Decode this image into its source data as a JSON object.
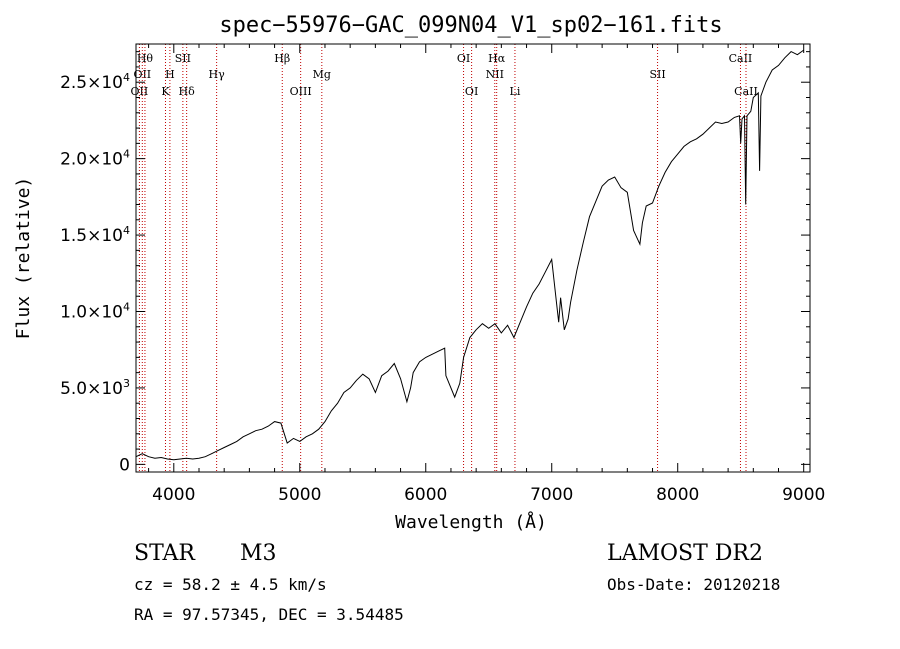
{
  "chart_data": {
    "type": "line",
    "title": "spec−55976−GAC_099N04_V1_sp02−161.fits",
    "xlabel": "Wavelength (Å)",
    "ylabel": "Flux (relative)",
    "xlim": [
      3700,
      9050
    ],
    "ylim": [
      -500,
      27500
    ],
    "x_ticks": [
      {
        "value": 4000,
        "label": "4000"
      },
      {
        "value": 5000,
        "label": "5000"
      },
      {
        "value": 6000,
        "label": "6000"
      },
      {
        "value": 7000,
        "label": "7000"
      },
      {
        "value": 8000,
        "label": "8000"
      },
      {
        "value": 9000,
        "label": "9000"
      }
    ],
    "y_ticks": [
      {
        "value": 0,
        "mant": "0",
        "exp": ""
      },
      {
        "value": 5000,
        "mant": "5.0×10",
        "exp": "3"
      },
      {
        "value": 10000,
        "mant": "1.0×10",
        "exp": "4"
      },
      {
        "value": 15000,
        "mant": "1.5×10",
        "exp": "4"
      },
      {
        "value": 20000,
        "mant": "2.0×10",
        "exp": "4"
      },
      {
        "value": 25000,
        "mant": "2.5×10",
        "exp": "4"
      }
    ],
    "grid": false,
    "line_color": "#000000",
    "line_marker_color": "#c00000",
    "spectral_lines": [
      {
        "x": 3727,
        "label": "OII",
        "tier": 3
      },
      {
        "x": 3750,
        "label": "OII",
        "tier": 2
      },
      {
        "x": 3771,
        "label": "Hθ",
        "tier": 1
      },
      {
        "x": 3934,
        "label": "K",
        "tier": 3
      },
      {
        "x": 3969,
        "label": "H",
        "tier": 2
      },
      {
        "x": 4072,
        "label": "SII",
        "tier": 1
      },
      {
        "x": 4102,
        "label": "Hδ",
        "tier": 3
      },
      {
        "x": 4340,
        "label": "Hγ",
        "tier": 2
      },
      {
        "x": 4861,
        "label": "Hβ",
        "tier": 1
      },
      {
        "x": 5007,
        "label": "OIII",
        "tier": 3
      },
      {
        "x": 5175,
        "label": "Mg",
        "tier": 2
      },
      {
        "x": 6300,
        "label": "OI",
        "tier": 1
      },
      {
        "x": 6364,
        "label": "OI",
        "tier": 3
      },
      {
        "x": 6548,
        "label": "NII",
        "tier": 2
      },
      {
        "x": 6563,
        "label": "Hα",
        "tier": 1
      },
      {
        "x": 6708,
        "label": "Li",
        "tier": 3
      },
      {
        "x": 7840,
        "label": "SII",
        "tier": 2
      },
      {
        "x": 8498,
        "label": "CaII",
        "tier": 1
      },
      {
        "x": 8542,
        "label": "CaII",
        "tier": 3
      }
    ],
    "series": [
      {
        "x": [
          3700,
          3750,
          3800,
          3850,
          3900,
          3950,
          4000,
          4050,
          4100,
          4150,
          4200,
          4250,
          4300,
          4350,
          4400,
          4450,
          4500,
          4550,
          4600,
          4650,
          4700,
          4750,
          4800,
          4850,
          4900,
          4950,
          5000,
          5050,
          5100,
          5150,
          5200,
          5250,
          5300,
          5350,
          5400,
          5450,
          5500,
          5550,
          5600,
          5650,
          5700,
          5750,
          5800,
          5850,
          5880,
          5900,
          5950,
          6000,
          6050,
          6100,
          6150,
          6160,
          6190,
          6230,
          6270,
          6300,
          6350,
          6400,
          6450,
          6500,
          6550,
          6600,
          6650,
          6700,
          6750,
          6800,
          6850,
          6900,
          6950,
          7000,
          7040,
          7055,
          7070,
          7100,
          7130,
          7150,
          7200,
          7250,
          7300,
          7350,
          7400,
          7450,
          7500,
          7550,
          7600,
          7650,
          7700,
          7720,
          7750,
          7800,
          7850,
          7900,
          7950,
          8000,
          8050,
          8100,
          8150,
          8200,
          8250,
          8300,
          8350,
          8400,
          8450,
          8490,
          8500,
          8510,
          8530,
          8540,
          8550,
          8580,
          8600,
          8640,
          8650,
          8660,
          8700,
          8750,
          8800,
          8850,
          8900,
          8950,
          9000
        ],
        "values": [
          500,
          700,
          500,
          400,
          450,
          350,
          300,
          350,
          400,
          350,
          400,
          500,
          700,
          900,
          1100,
          1300,
          1500,
          1800,
          2000,
          2200,
          2300,
          2500,
          2800,
          2700,
          1400,
          1700,
          1500,
          1800,
          2000,
          2300,
          2800,
          3500,
          4000,
          4700,
          5000,
          5500,
          5900,
          5600,
          4700,
          5800,
          6100,
          6600,
          5600,
          4100,
          5000,
          6000,
          6700,
          7000,
          7200,
          7400,
          7600,
          5800,
          5200,
          4400,
          5300,
          7000,
          8300,
          8800,
          9200,
          8900,
          9200,
          8600,
          9100,
          8300,
          9300,
          10300,
          11200,
          11800,
          12600,
          13400,
          10400,
          9300,
          10900,
          8800,
          9500,
          10600,
          12700,
          14500,
          16200,
          17200,
          18200,
          18600,
          18800,
          18100,
          17800,
          15300,
          14400,
          15800,
          16900,
          17100,
          18200,
          19100,
          19800,
          20300,
          20800,
          21100,
          21300,
          21600,
          22000,
          22400,
          22300,
          22400,
          22700,
          22800,
          21000,
          22600,
          22800,
          17000,
          22800,
          23100,
          24000,
          24300,
          19200,
          24100,
          25000,
          25800,
          26100,
          26600,
          27000,
          26800,
          27100
        ]
      }
    ]
  },
  "footer": {
    "object_type": "STAR",
    "subclass": "M3",
    "survey": "LAMOST DR2",
    "cz": "cz = 58.2 ± 4.5 km/s",
    "obs_date": "Obs-Date: 20120218",
    "coords": "RA =  97.57345, DEC =   3.54485"
  }
}
